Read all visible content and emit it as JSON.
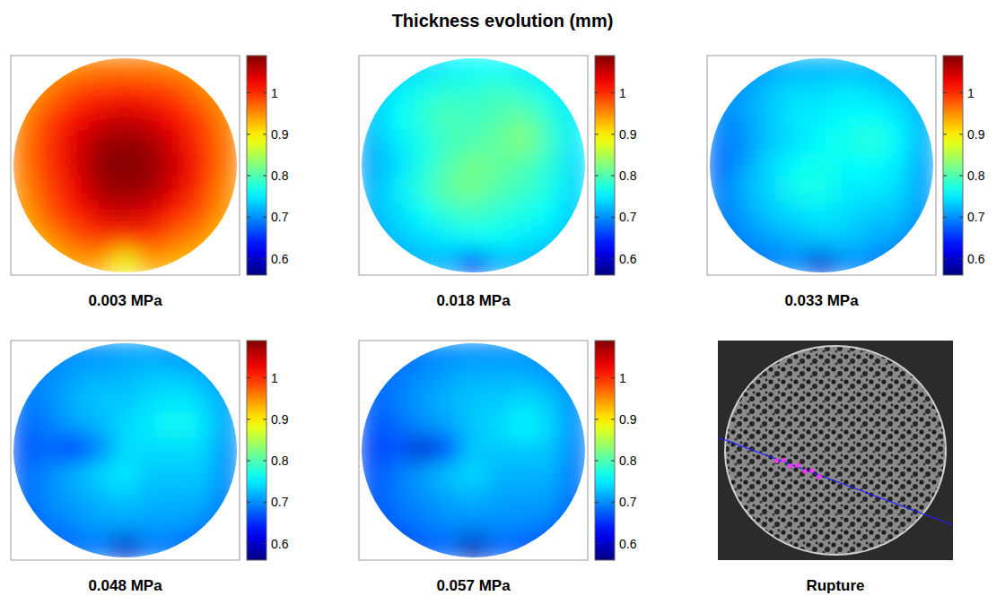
{
  "title": "Thickness evolution (mm)",
  "chart_data": [
    {
      "type": "heatmap",
      "title": "0.003 MPa",
      "colorbar": {
        "range": [
          0.56,
          1.09
        ],
        "ticks": [
          0.6,
          0.7,
          0.8,
          0.9,
          1
        ]
      },
      "cells": [
        [
          0.93,
          0.94,
          0.95,
          0.96,
          0.96,
          0.96,
          0.95,
          0.94,
          0.93
        ],
        [
          0.94,
          0.96,
          0.99,
          1.0,
          1.01,
          1.0,
          0.99,
          0.96,
          0.94
        ],
        [
          0.95,
          0.99,
          1.02,
          1.04,
          1.05,
          1.04,
          1.02,
          0.99,
          0.95
        ],
        [
          0.96,
          1.0,
          1.04,
          1.07,
          1.08,
          1.07,
          1.04,
          1.0,
          0.96
        ],
        [
          0.96,
          1.0,
          1.04,
          1.08,
          1.09,
          1.08,
          1.05,
          1.01,
          0.96
        ],
        [
          0.95,
          0.99,
          1.03,
          1.07,
          1.08,
          1.07,
          1.04,
          1.0,
          0.95
        ],
        [
          0.94,
          0.98,
          1.01,
          1.04,
          1.05,
          1.04,
          1.01,
          0.98,
          0.94
        ],
        [
          0.92,
          0.95,
          0.98,
          1.0,
          1.0,
          1.0,
          0.97,
          0.95,
          0.92
        ],
        [
          0.9,
          0.92,
          0.94,
          0.94,
          0.88,
          0.94,
          0.93,
          0.92,
          0.9
        ]
      ]
    },
    {
      "type": "heatmap",
      "title": "0.018 MPa",
      "colorbar": {
        "range": [
          0.56,
          1.09
        ],
        "ticks": [
          0.6,
          0.7,
          0.8,
          0.9,
          1
        ]
      },
      "cells": [
        [
          0.72,
          0.73,
          0.74,
          0.75,
          0.76,
          0.76,
          0.75,
          0.74,
          0.73
        ],
        [
          0.73,
          0.75,
          0.77,
          0.78,
          0.78,
          0.79,
          0.78,
          0.76,
          0.74
        ],
        [
          0.73,
          0.76,
          0.78,
          0.8,
          0.79,
          0.8,
          0.81,
          0.78,
          0.75
        ],
        [
          0.72,
          0.75,
          0.77,
          0.79,
          0.8,
          0.81,
          0.83,
          0.79,
          0.75
        ],
        [
          0.71,
          0.74,
          0.77,
          0.8,
          0.82,
          0.81,
          0.8,
          0.78,
          0.74
        ],
        [
          0.72,
          0.75,
          0.78,
          0.81,
          0.82,
          0.8,
          0.79,
          0.77,
          0.74
        ],
        [
          0.72,
          0.74,
          0.76,
          0.78,
          0.79,
          0.78,
          0.77,
          0.76,
          0.73
        ],
        [
          0.71,
          0.73,
          0.74,
          0.75,
          0.76,
          0.76,
          0.75,
          0.74,
          0.72
        ],
        [
          0.7,
          0.71,
          0.72,
          0.72,
          0.62,
          0.72,
          0.72,
          0.71,
          0.7
        ]
      ]
    },
    {
      "type": "heatmap",
      "title": "0.033 MPa",
      "colorbar": {
        "range": [
          0.56,
          1.09
        ],
        "ticks": [
          0.6,
          0.7,
          0.8,
          0.9,
          1
        ]
      },
      "cells": [
        [
          0.69,
          0.7,
          0.71,
          0.72,
          0.72,
          0.72,
          0.72,
          0.71,
          0.7
        ],
        [
          0.7,
          0.71,
          0.73,
          0.74,
          0.74,
          0.75,
          0.74,
          0.73,
          0.71
        ],
        [
          0.7,
          0.71,
          0.73,
          0.75,
          0.75,
          0.76,
          0.76,
          0.75,
          0.72
        ],
        [
          0.69,
          0.7,
          0.73,
          0.74,
          0.76,
          0.77,
          0.78,
          0.76,
          0.72
        ],
        [
          0.68,
          0.71,
          0.74,
          0.76,
          0.77,
          0.76,
          0.76,
          0.75,
          0.71
        ],
        [
          0.69,
          0.72,
          0.74,
          0.77,
          0.77,
          0.75,
          0.75,
          0.74,
          0.71
        ],
        [
          0.69,
          0.71,
          0.73,
          0.74,
          0.75,
          0.74,
          0.73,
          0.73,
          0.7
        ],
        [
          0.68,
          0.7,
          0.71,
          0.72,
          0.73,
          0.73,
          0.72,
          0.71,
          0.69
        ],
        [
          0.67,
          0.68,
          0.69,
          0.7,
          0.6,
          0.7,
          0.69,
          0.68,
          0.67
        ]
      ]
    },
    {
      "type": "heatmap",
      "title": "0.048 MPa",
      "colorbar": {
        "range": [
          0.56,
          1.09
        ],
        "ticks": [
          0.6,
          0.7,
          0.8,
          0.9,
          1
        ]
      },
      "cells": [
        [
          0.68,
          0.69,
          0.7,
          0.7,
          0.71,
          0.71,
          0.7,
          0.7,
          0.69
        ],
        [
          0.69,
          0.7,
          0.71,
          0.72,
          0.72,
          0.73,
          0.73,
          0.72,
          0.7
        ],
        [
          0.69,
          0.7,
          0.72,
          0.73,
          0.73,
          0.74,
          0.75,
          0.74,
          0.71
        ],
        [
          0.68,
          0.69,
          0.71,
          0.72,
          0.74,
          0.75,
          0.77,
          0.75,
          0.71
        ],
        [
          0.67,
          0.68,
          0.64,
          0.69,
          0.74,
          0.74,
          0.74,
          0.74,
          0.7
        ],
        [
          0.68,
          0.7,
          0.72,
          0.74,
          0.75,
          0.73,
          0.73,
          0.73,
          0.7
        ],
        [
          0.68,
          0.7,
          0.71,
          0.72,
          0.73,
          0.72,
          0.72,
          0.72,
          0.69
        ],
        [
          0.67,
          0.69,
          0.7,
          0.71,
          0.71,
          0.71,
          0.71,
          0.7,
          0.68
        ],
        [
          0.66,
          0.67,
          0.68,
          0.69,
          0.59,
          0.69,
          0.68,
          0.67,
          0.66
        ]
      ]
    },
    {
      "type": "heatmap",
      "title": "0.057 MPa",
      "colorbar": {
        "range": [
          0.56,
          1.09
        ],
        "ticks": [
          0.6,
          0.7,
          0.8,
          0.9,
          1
        ]
      },
      "cells": [
        [
          0.67,
          0.68,
          0.69,
          0.7,
          0.7,
          0.7,
          0.7,
          0.69,
          0.68
        ],
        [
          0.68,
          0.69,
          0.7,
          0.71,
          0.72,
          0.72,
          0.72,
          0.71,
          0.69
        ],
        [
          0.68,
          0.69,
          0.71,
          0.72,
          0.73,
          0.73,
          0.74,
          0.73,
          0.7
        ],
        [
          0.67,
          0.68,
          0.7,
          0.71,
          0.73,
          0.74,
          0.76,
          0.74,
          0.7
        ],
        [
          0.66,
          0.67,
          0.6,
          0.66,
          0.73,
          0.73,
          0.73,
          0.73,
          0.69
        ],
        [
          0.67,
          0.69,
          0.71,
          0.73,
          0.74,
          0.72,
          0.72,
          0.72,
          0.69
        ],
        [
          0.67,
          0.69,
          0.7,
          0.71,
          0.72,
          0.71,
          0.71,
          0.71,
          0.68
        ],
        [
          0.66,
          0.68,
          0.69,
          0.7,
          0.7,
          0.7,
          0.7,
          0.69,
          0.67
        ],
        [
          0.65,
          0.66,
          0.67,
          0.68,
          0.58,
          0.68,
          0.67,
          0.66,
          0.65
        ]
      ]
    },
    {
      "type": "image",
      "title": "Rupture"
    }
  ]
}
